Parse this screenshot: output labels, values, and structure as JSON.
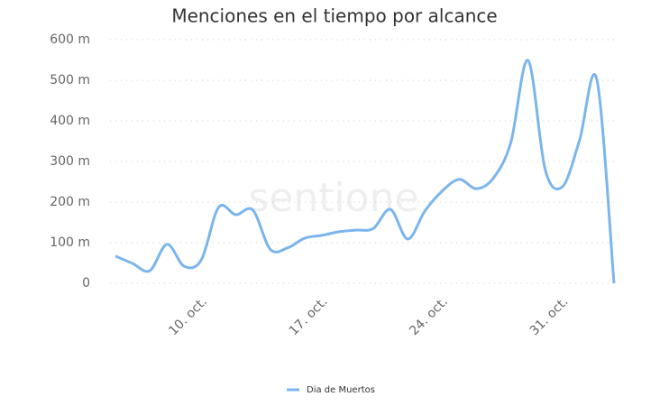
{
  "chart_data": {
    "type": "line",
    "title": "Menciones en el tiempo por alcance",
    "watermark": "sentione",
    "categories": [
      null,
      null,
      null,
      null,
      null,
      "10. oct.",
      null,
      null,
      null,
      null,
      null,
      null,
      "17. oct.",
      null,
      null,
      null,
      null,
      null,
      null,
      "24. oct.",
      null,
      null,
      null,
      null,
      null,
      null,
      "31. oct.",
      null,
      null,
      null
    ],
    "series": [
      {
        "name": "Dia de Muertos",
        "color": "#7cb5ec",
        "values": [
          67,
          49,
          31,
          96,
          42,
          58,
          187,
          169,
          180,
          84,
          87,
          111,
          118,
          127,
          131,
          135,
          182,
          109,
          178,
          227,
          256,
          233,
          260,
          347,
          549,
          280,
          238,
          353,
          502,
          0
        ]
      }
    ],
    "ylim": [
      0,
      600
    ],
    "yticks": [
      0,
      {
        "value": 100,
        "label": "100 m"
      },
      {
        "value": 200,
        "label": "200 m"
      },
      {
        "value": 300,
        "label": "300 m"
      },
      {
        "value": 400,
        "label": "400 m"
      },
      {
        "value": 500,
        "label": "500 m"
      },
      {
        "value": 600,
        "label": "600 m"
      }
    ],
    "grid": true,
    "legend": "bottom"
  }
}
